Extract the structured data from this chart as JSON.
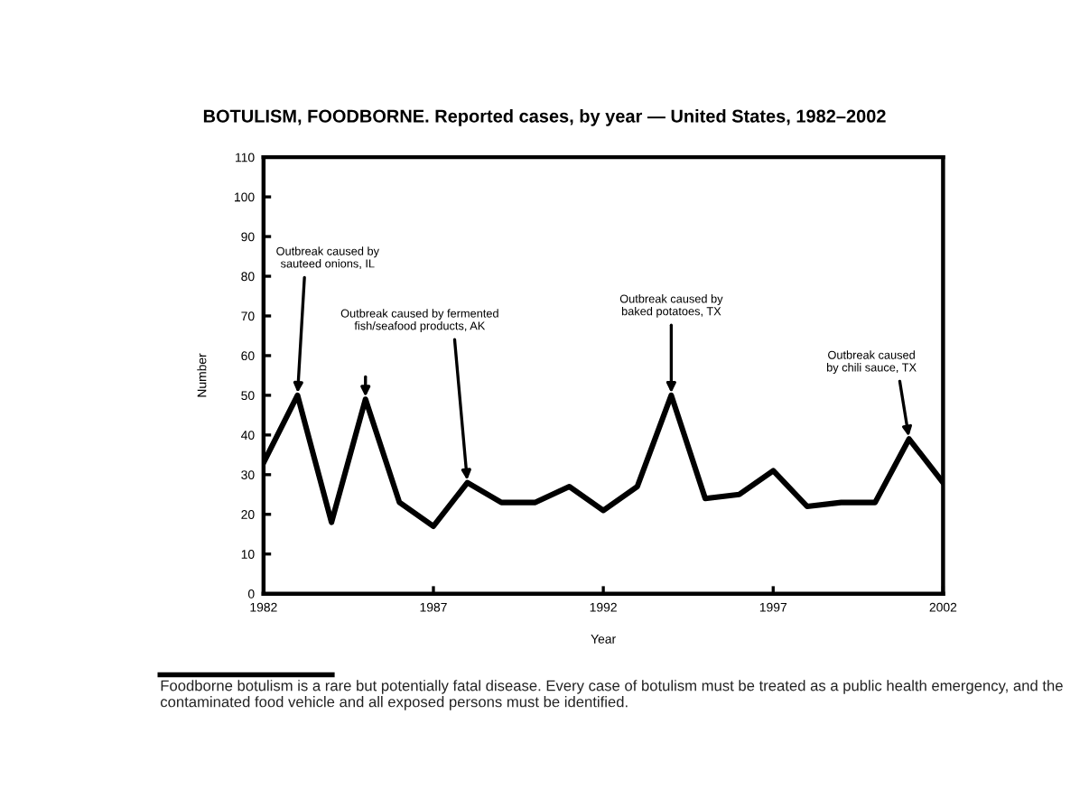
{
  "chart_data": {
    "type": "line",
    "title": "BOTULISM, FOODBORNE. Reported cases, by year — United States, 1982–2002",
    "xlabel": "Year",
    "ylabel": "Number",
    "x": [
      1982,
      1983,
      1984,
      1985,
      1986,
      1987,
      1988,
      1989,
      1990,
      1991,
      1992,
      1993,
      1994,
      1995,
      1996,
      1997,
      1998,
      1999,
      2000,
      2001,
      2002
    ],
    "series": [
      {
        "color": "#000000",
        "values": [
          33,
          50,
          18,
          49,
          23,
          17,
          28,
          23,
          23,
          27,
          21,
          27,
          50,
          24,
          25,
          31,
          22,
          23,
          23,
          39,
          28
        ]
      }
    ],
    "xlim": [
      1982,
      2002
    ],
    "xticks": [
      1982,
      1987,
      1992,
      1997,
      2002
    ],
    "ylim": [
      0,
      110
    ],
    "yticks": [
      0,
      10,
      20,
      30,
      40,
      50,
      60,
      70,
      80,
      90,
      100,
      110
    ],
    "grid": false,
    "legend": false,
    "marker": "none",
    "line_style": "solid",
    "annotations": [
      {
        "text": "Outbreak caused by\nsauteed onions, IL",
        "x": 1983,
        "y": 50
      },
      {
        "text": "Outbreak caused by fermented\nfish/seafood products, AK",
        "x": 1988,
        "y": 28
      },
      {
        "text": "Outbreak caused by\nbaked potatoes, TX",
        "x": 1994,
        "y": 50
      },
      {
        "text": "Outbreak caused\nby chili sauce, TX",
        "x": 2001,
        "y": 39
      },
      "Foodborne botulism is a rare but potentially fatal disease. Every case of botulism must be treated as a public health emergency, and the contaminated food vehicle and all exposed persons must be identified."
    ]
  }
}
